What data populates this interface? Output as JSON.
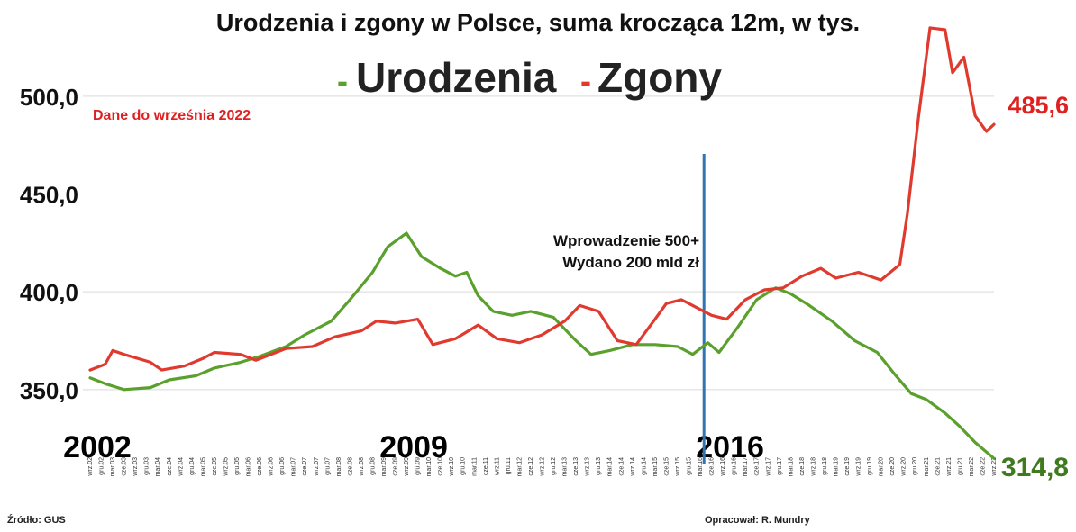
{
  "colors": {
    "births": "#5aa02c",
    "deaths": "#e03a2f",
    "marker": "#2e75b6",
    "grid": "#d9d9d9",
    "text": "#111111",
    "births_label": "#3f7a1e",
    "deaths_label": "#e02020",
    "note": "#e02020"
  },
  "footer": {
    "source": "Źródło: GUS",
    "author": "Opracował: R. Mundry"
  },
  "chart_data": {
    "type": "line",
    "title": "Urodzenia i zgony w Polsce, suma krocząca 12m, w tys.",
    "legend": {
      "position": "top-center",
      "items": [
        {
          "symbol": "-",
          "name": "Urodzenia",
          "color": "#5aa02c"
        },
        {
          "symbol": "-",
          "name": "Zgony",
          "color": "#e03a2f"
        }
      ]
    },
    "note": "Dane do września 2022",
    "y_ticks": [
      "350,0",
      "400,0",
      "450,0",
      "500,0"
    ],
    "y_tick_values": [
      350,
      400,
      450,
      500
    ],
    "ylim": [
      320,
      540
    ],
    "grid": true,
    "x_start": "2002-09",
    "x_end": "2022-09",
    "year_labels": [
      {
        "label": "2002",
        "at": "2002-09"
      },
      {
        "label": "2009",
        "at": "2009-09"
      },
      {
        "label": "2016",
        "at": "2016-09"
      }
    ],
    "month_abbr": [
      "sty",
      "lut",
      "mar",
      "kwi",
      "maj",
      "cze",
      "lip",
      "sie",
      "wrz",
      "paź",
      "lis",
      "gru"
    ],
    "annotation": {
      "lines": [
        "Wprowadzenie 500+",
        "Wydano 200 mld zł"
      ],
      "at": "2016-04"
    },
    "end_labels": {
      "deaths": "485,6",
      "births": "314,8"
    },
    "series": [
      {
        "name": "Urodzenia",
        "points": [
          [
            "2002-09",
            356
          ],
          [
            "2003-01",
            353
          ],
          [
            "2003-06",
            350
          ],
          [
            "2004-01",
            351
          ],
          [
            "2004-06",
            355
          ],
          [
            "2005-01",
            357
          ],
          [
            "2005-06",
            361
          ],
          [
            "2006-01",
            364
          ],
          [
            "2006-06",
            367
          ],
          [
            "2007-01",
            372
          ],
          [
            "2007-06",
            378
          ],
          [
            "2008-01",
            385
          ],
          [
            "2008-06",
            396
          ],
          [
            "2008-12",
            410
          ],
          [
            "2009-04",
            423
          ],
          [
            "2009-09",
            430
          ],
          [
            "2010-01",
            418
          ],
          [
            "2010-06",
            412
          ],
          [
            "2010-10",
            408
          ],
          [
            "2011-01",
            410
          ],
          [
            "2011-04",
            398
          ],
          [
            "2011-08",
            390
          ],
          [
            "2012-01",
            388
          ],
          [
            "2012-06",
            390
          ],
          [
            "2012-12",
            387
          ],
          [
            "2013-06",
            375
          ],
          [
            "2013-10",
            368
          ],
          [
            "2014-03",
            370
          ],
          [
            "2014-09",
            373
          ],
          [
            "2015-03",
            373
          ],
          [
            "2015-09",
            372
          ],
          [
            "2016-01",
            368
          ],
          [
            "2016-05",
            374
          ],
          [
            "2016-08",
            369
          ],
          [
            "2017-01",
            382
          ],
          [
            "2017-06",
            396
          ],
          [
            "2017-11",
            402
          ],
          [
            "2018-03",
            399
          ],
          [
            "2018-08",
            393
          ],
          [
            "2019-02",
            385
          ],
          [
            "2019-08",
            375
          ],
          [
            "2020-02",
            369
          ],
          [
            "2020-07",
            357
          ],
          [
            "2020-11",
            348
          ],
          [
            "2021-03",
            345
          ],
          [
            "2021-08",
            338
          ],
          [
            "2021-12",
            331
          ],
          [
            "2022-04",
            323
          ],
          [
            "2022-09",
            314.8
          ]
        ]
      },
      {
        "name": "Zgony",
        "points": [
          [
            "2002-09",
            360
          ],
          [
            "2003-01",
            363
          ],
          [
            "2003-03",
            370
          ],
          [
            "2003-06",
            368
          ],
          [
            "2004-01",
            364
          ],
          [
            "2004-04",
            360
          ],
          [
            "2004-10",
            362
          ],
          [
            "2005-03",
            366
          ],
          [
            "2005-06",
            369
          ],
          [
            "2006-01",
            368
          ],
          [
            "2006-05",
            365
          ],
          [
            "2007-01",
            371
          ],
          [
            "2007-08",
            372
          ],
          [
            "2008-02",
            377
          ],
          [
            "2008-09",
            380
          ],
          [
            "2009-01",
            385
          ],
          [
            "2009-06",
            384
          ],
          [
            "2009-12",
            386
          ],
          [
            "2010-04",
            373
          ],
          [
            "2010-10",
            376
          ],
          [
            "2011-04",
            383
          ],
          [
            "2011-09",
            376
          ],
          [
            "2012-03",
            374
          ],
          [
            "2012-09",
            378
          ],
          [
            "2013-03",
            385
          ],
          [
            "2013-07",
            393
          ],
          [
            "2013-12",
            390
          ],
          [
            "2014-05",
            375
          ],
          [
            "2014-10",
            373
          ],
          [
            "2015-03",
            386
          ],
          [
            "2015-06",
            394
          ],
          [
            "2015-10",
            396
          ],
          [
            "2016-01",
            393
          ],
          [
            "2016-06",
            388
          ],
          [
            "2016-10",
            386
          ],
          [
            "2017-03",
            396
          ],
          [
            "2017-08",
            401
          ],
          [
            "2018-01",
            402
          ],
          [
            "2018-06",
            408
          ],
          [
            "2018-11",
            412
          ],
          [
            "2019-03",
            407
          ],
          [
            "2019-09",
            410
          ],
          [
            "2020-03",
            406
          ],
          [
            "2020-08",
            414
          ],
          [
            "2020-10",
            440
          ],
          [
            "2021-01",
            490
          ],
          [
            "2021-04",
            535
          ],
          [
            "2021-08",
            534
          ],
          [
            "2021-10",
            512
          ],
          [
            "2022-01",
            520
          ],
          [
            "2022-04",
            490
          ],
          [
            "2022-07",
            482
          ],
          [
            "2022-09",
            485.6
          ]
        ]
      }
    ]
  }
}
